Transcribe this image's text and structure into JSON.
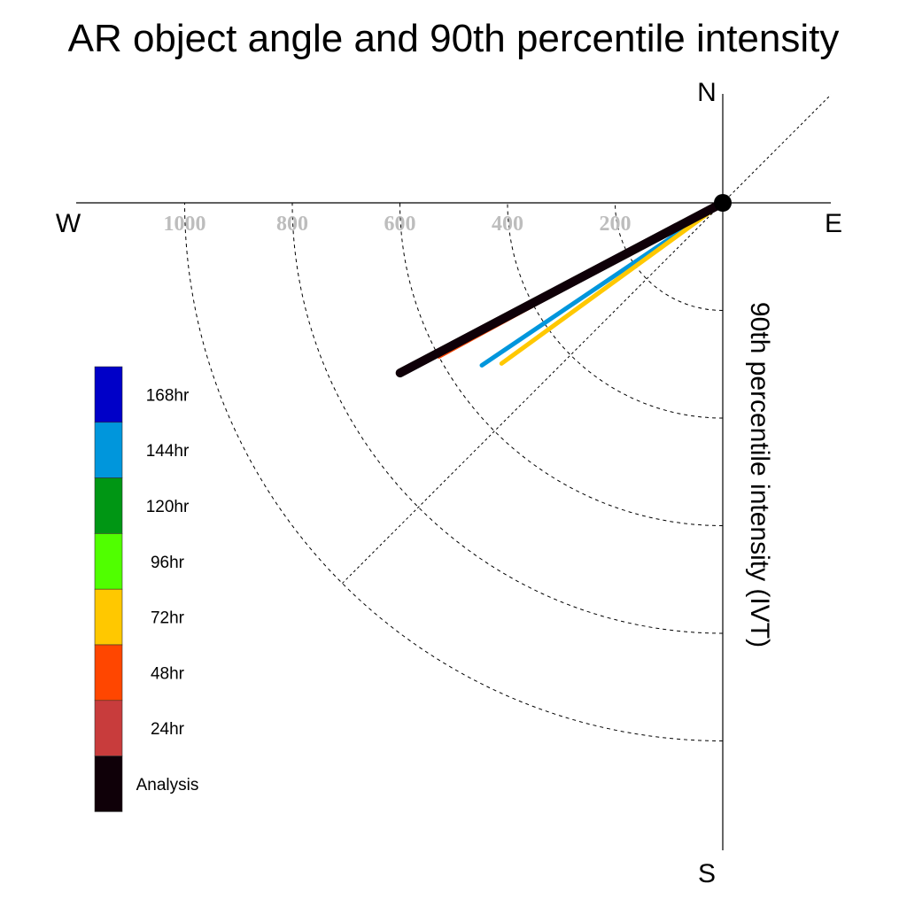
{
  "chart_data": {
    "type": "polar-vector",
    "title": "AR object angle and 90th percentile intensity",
    "ylabel": "90th percentile intensity (IVT)",
    "compass": {
      "north": "N",
      "south": "S",
      "east": "E",
      "west": "W"
    },
    "radial_ticks": [
      200,
      400,
      600,
      800,
      1000
    ],
    "radial_tick_labels": [
      "200",
      "400",
      "600",
      "800",
      "1000"
    ],
    "rmax": 1200,
    "grid": "dashed",
    "legend_placement": "left",
    "legend": [
      {
        "label": "168hr",
        "color": "#0000c8"
      },
      {
        "label": "144hr",
        "color": "#0096dc"
      },
      {
        "label": "120hr",
        "color": "#009614"
      },
      {
        "label": "96hr",
        "color": "#50ff00"
      },
      {
        "label": "72hr",
        "color": "#ffc800"
      },
      {
        "label": "48hr",
        "color": "#ff4600"
      },
      {
        "label": "24hr",
        "color": "#c83c3c"
      },
      {
        "label": "Analysis",
        "color": "#0f0008"
      }
    ],
    "vectors": [
      {
        "label": "144hr",
        "angle_deg": 236,
        "intensity": 540,
        "color": "#0096dc",
        "width": 5
      },
      {
        "label": "72hr",
        "angle_deg": 234,
        "intensity": 508,
        "color": "#ffc800",
        "width": 5
      },
      {
        "label": "24hr",
        "angle_deg": 242.5,
        "intensity": 632,
        "color": "#c83c3c",
        "width": 5
      },
      {
        "label": "48hr",
        "angle_deg": 241.5,
        "intensity": 600,
        "color": "#ff4600",
        "width": 4
      },
      {
        "label": "Analysis",
        "angle_deg": 242.2,
        "intensity": 678,
        "color": "#0f0008",
        "width": 10
      }
    ]
  }
}
